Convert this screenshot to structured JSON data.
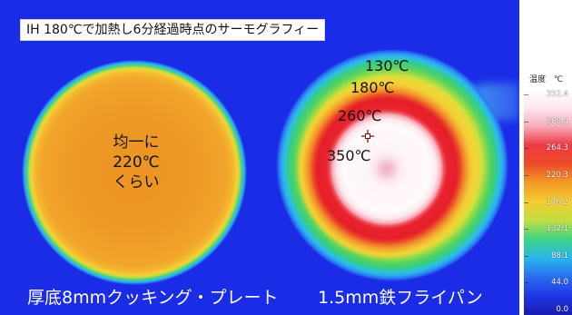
{
  "title": "IH 180℃で加熱し6分経過時点のサーモグラフィー",
  "plate": {
    "annotation": [
      "均一に",
      "220℃",
      "くらい"
    ],
    "caption": "厚底8mmクッキング・プレート"
  },
  "pan": {
    "annotations": [
      "130℃",
      "180℃",
      "260℃",
      "350℃"
    ],
    "caption": "1.5mm鉄フライパン",
    "marker_icon": "crosshair-icon"
  },
  "scale": {
    "label": "温度",
    "unit": "℃",
    "ticks": [
      "352.4",
      "308.4",
      "264.3",
      "220.3",
      "176.2",
      "132.1",
      "88.1",
      "44.0",
      "0.0"
    ],
    "colors": [
      "#ffffff",
      "#fdeaf0",
      "#f7aebe",
      "#ef3a46",
      "#ec4a28",
      "#f39a26",
      "#f3cc30",
      "#c2de42",
      "#3ed486",
      "#2ab6ee",
      "#2a6cf0",
      "#1e36e6",
      "#1a1cb0"
    ]
  },
  "colors": {
    "background": "#1b2ce6",
    "caption_text": "#ffffff",
    "annotation_text": "#141414"
  }
}
